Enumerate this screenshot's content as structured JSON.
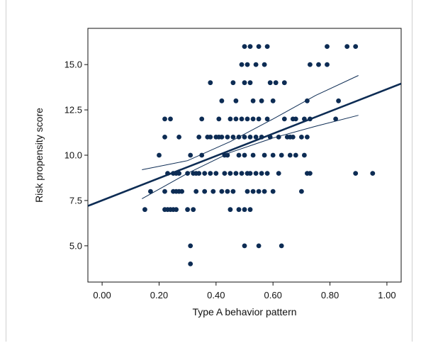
{
  "chart_data": {
    "type": "scatter",
    "title": "",
    "xlabel": "Type A behavior pattern",
    "ylabel": "Risk propensity score",
    "xlim": [
      -0.05,
      1.05
    ],
    "ylim": [
      3.0,
      17.0
    ],
    "x_ticks": [
      0.0,
      0.2,
      0.4,
      0.6,
      0.8,
      1.0
    ],
    "x_tick_labels": [
      "0.00",
      "0.20",
      "0.40",
      "0.60",
      "0.80",
      "1.00"
    ],
    "y_ticks": [
      5.0,
      7.5,
      10.0,
      12.5,
      15.0
    ],
    "y_tick_labels": [
      "5.0",
      "7.5",
      "10.0",
      "12.5",
      "15.0"
    ],
    "grid": false,
    "marker_color": "#0d2c54",
    "line_color": "#0d2c54",
    "points": [
      [
        0.15,
        7
      ],
      [
        0.17,
        8
      ],
      [
        0.2,
        10
      ],
      [
        0.22,
        12
      ],
      [
        0.24,
        12
      ],
      [
        0.22,
        11
      ],
      [
        0.23,
        9
      ],
      [
        0.22,
        8
      ],
      [
        0.22,
        7
      ],
      [
        0.23,
        7
      ],
      [
        0.24,
        7
      ],
      [
        0.25,
        7
      ],
      [
        0.26,
        7
      ],
      [
        0.25,
        9
      ],
      [
        0.26,
        9
      ],
      [
        0.27,
        9
      ],
      [
        0.25,
        8
      ],
      [
        0.26,
        8
      ],
      [
        0.27,
        8
      ],
      [
        0.28,
        8
      ],
      [
        0.27,
        11
      ],
      [
        0.3,
        9
      ],
      [
        0.3,
        7
      ],
      [
        0.31,
        5
      ],
      [
        0.31,
        4
      ],
      [
        0.31,
        10
      ],
      [
        0.32,
        9
      ],
      [
        0.32,
        7
      ],
      [
        0.33,
        9
      ],
      [
        0.33,
        8
      ],
      [
        0.34,
        11
      ],
      [
        0.34,
        9
      ],
      [
        0.35,
        12
      ],
      [
        0.35,
        10
      ],
      [
        0.36,
        9
      ],
      [
        0.36,
        8
      ],
      [
        0.37,
        11
      ],
      [
        0.38,
        9
      ],
      [
        0.38,
        14
      ],
      [
        0.38,
        11
      ],
      [
        0.39,
        8
      ],
      [
        0.4,
        11
      ],
      [
        0.4,
        9
      ],
      [
        0.41,
        12
      ],
      [
        0.41,
        11
      ],
      [
        0.42,
        11
      ],
      [
        0.42,
        8
      ],
      [
        0.42,
        13
      ],
      [
        0.43,
        10
      ],
      [
        0.43,
        9
      ],
      [
        0.44,
        10
      ],
      [
        0.44,
        8
      ],
      [
        0.44,
        11
      ],
      [
        0.45,
        12
      ],
      [
        0.45,
        9
      ],
      [
        0.45,
        7
      ],
      [
        0.46,
        14
      ],
      [
        0.46,
        11
      ],
      [
        0.46,
        8
      ],
      [
        0.47,
        12
      ],
      [
        0.47,
        9
      ],
      [
        0.47,
        13
      ],
      [
        0.48,
        10
      ],
      [
        0.48,
        7
      ],
      [
        0.48,
        11
      ],
      [
        0.49,
        12
      ],
      [
        0.49,
        15
      ],
      [
        0.49,
        9
      ],
      [
        0.5,
        16
      ],
      [
        0.5,
        14
      ],
      [
        0.5,
        11
      ],
      [
        0.5,
        10
      ],
      [
        0.5,
        7
      ],
      [
        0.5,
        5
      ],
      [
        0.51,
        12
      ],
      [
        0.51,
        9
      ],
      [
        0.51,
        8
      ],
      [
        0.51,
        15
      ],
      [
        0.52,
        16
      ],
      [
        0.52,
        14
      ],
      [
        0.52,
        11
      ],
      [
        0.52,
        9
      ],
      [
        0.52,
        7
      ],
      [
        0.53,
        13
      ],
      [
        0.53,
        10
      ],
      [
        0.53,
        8
      ],
      [
        0.53,
        12
      ],
      [
        0.54,
        15
      ],
      [
        0.54,
        11
      ],
      [
        0.54,
        9
      ],
      [
        0.55,
        16
      ],
      [
        0.55,
        12
      ],
      [
        0.55,
        8
      ],
      [
        0.55,
        5
      ],
      [
        0.56,
        13
      ],
      [
        0.56,
        11
      ],
      [
        0.56,
        9
      ],
      [
        0.57,
        10
      ],
      [
        0.57,
        15
      ],
      [
        0.57,
        8
      ],
      [
        0.58,
        16
      ],
      [
        0.58,
        12
      ],
      [
        0.58,
        9
      ],
      [
        0.59,
        14
      ],
      [
        0.59,
        11
      ],
      [
        0.6,
        8
      ],
      [
        0.6,
        10
      ],
      [
        0.6,
        13
      ],
      [
        0.61,
        14
      ],
      [
        0.62,
        11
      ],
      [
        0.62,
        9
      ],
      [
        0.63,
        5
      ],
      [
        0.63,
        10
      ],
      [
        0.64,
        14
      ],
      [
        0.64,
        12
      ],
      [
        0.65,
        11
      ],
      [
        0.66,
        11
      ],
      [
        0.66,
        10
      ],
      [
        0.67,
        12
      ],
      [
        0.67,
        11
      ],
      [
        0.68,
        12
      ],
      [
        0.68,
        10
      ],
      [
        0.7,
        8
      ],
      [
        0.7,
        11
      ],
      [
        0.71,
        12
      ],
      [
        0.71,
        10
      ],
      [
        0.72,
        13
      ],
      [
        0.72,
        9
      ],
      [
        0.72,
        11
      ],
      [
        0.73,
        15
      ],
      [
        0.73,
        12
      ],
      [
        0.73,
        9
      ],
      [
        0.76,
        15
      ],
      [
        0.79,
        15
      ],
      [
        0.79,
        16
      ],
      [
        0.82,
        12
      ],
      [
        0.83,
        13
      ],
      [
        0.86,
        16
      ],
      [
        0.89,
        9
      ],
      [
        0.89,
        16
      ],
      [
        0.95,
        9
      ]
    ],
    "fit_line": {
      "x": [
        -0.05,
        1.05
      ],
      "y": [
        7.2,
        13.95
      ]
    },
    "confidence_band": {
      "upper": [
        [
          0.14,
          9.2
        ],
        [
          0.3,
          9.7
        ],
        [
          0.45,
          10.75
        ],
        [
          0.6,
          12.0
        ],
        [
          0.75,
          13.3
        ],
        [
          0.9,
          14.4
        ]
      ],
      "lower": [
        [
          0.14,
          7.6
        ],
        [
          0.3,
          9.0
        ],
        [
          0.45,
          10.15
        ],
        [
          0.6,
          10.95
        ],
        [
          0.75,
          11.6
        ],
        [
          0.9,
          12.2
        ]
      ]
    }
  }
}
